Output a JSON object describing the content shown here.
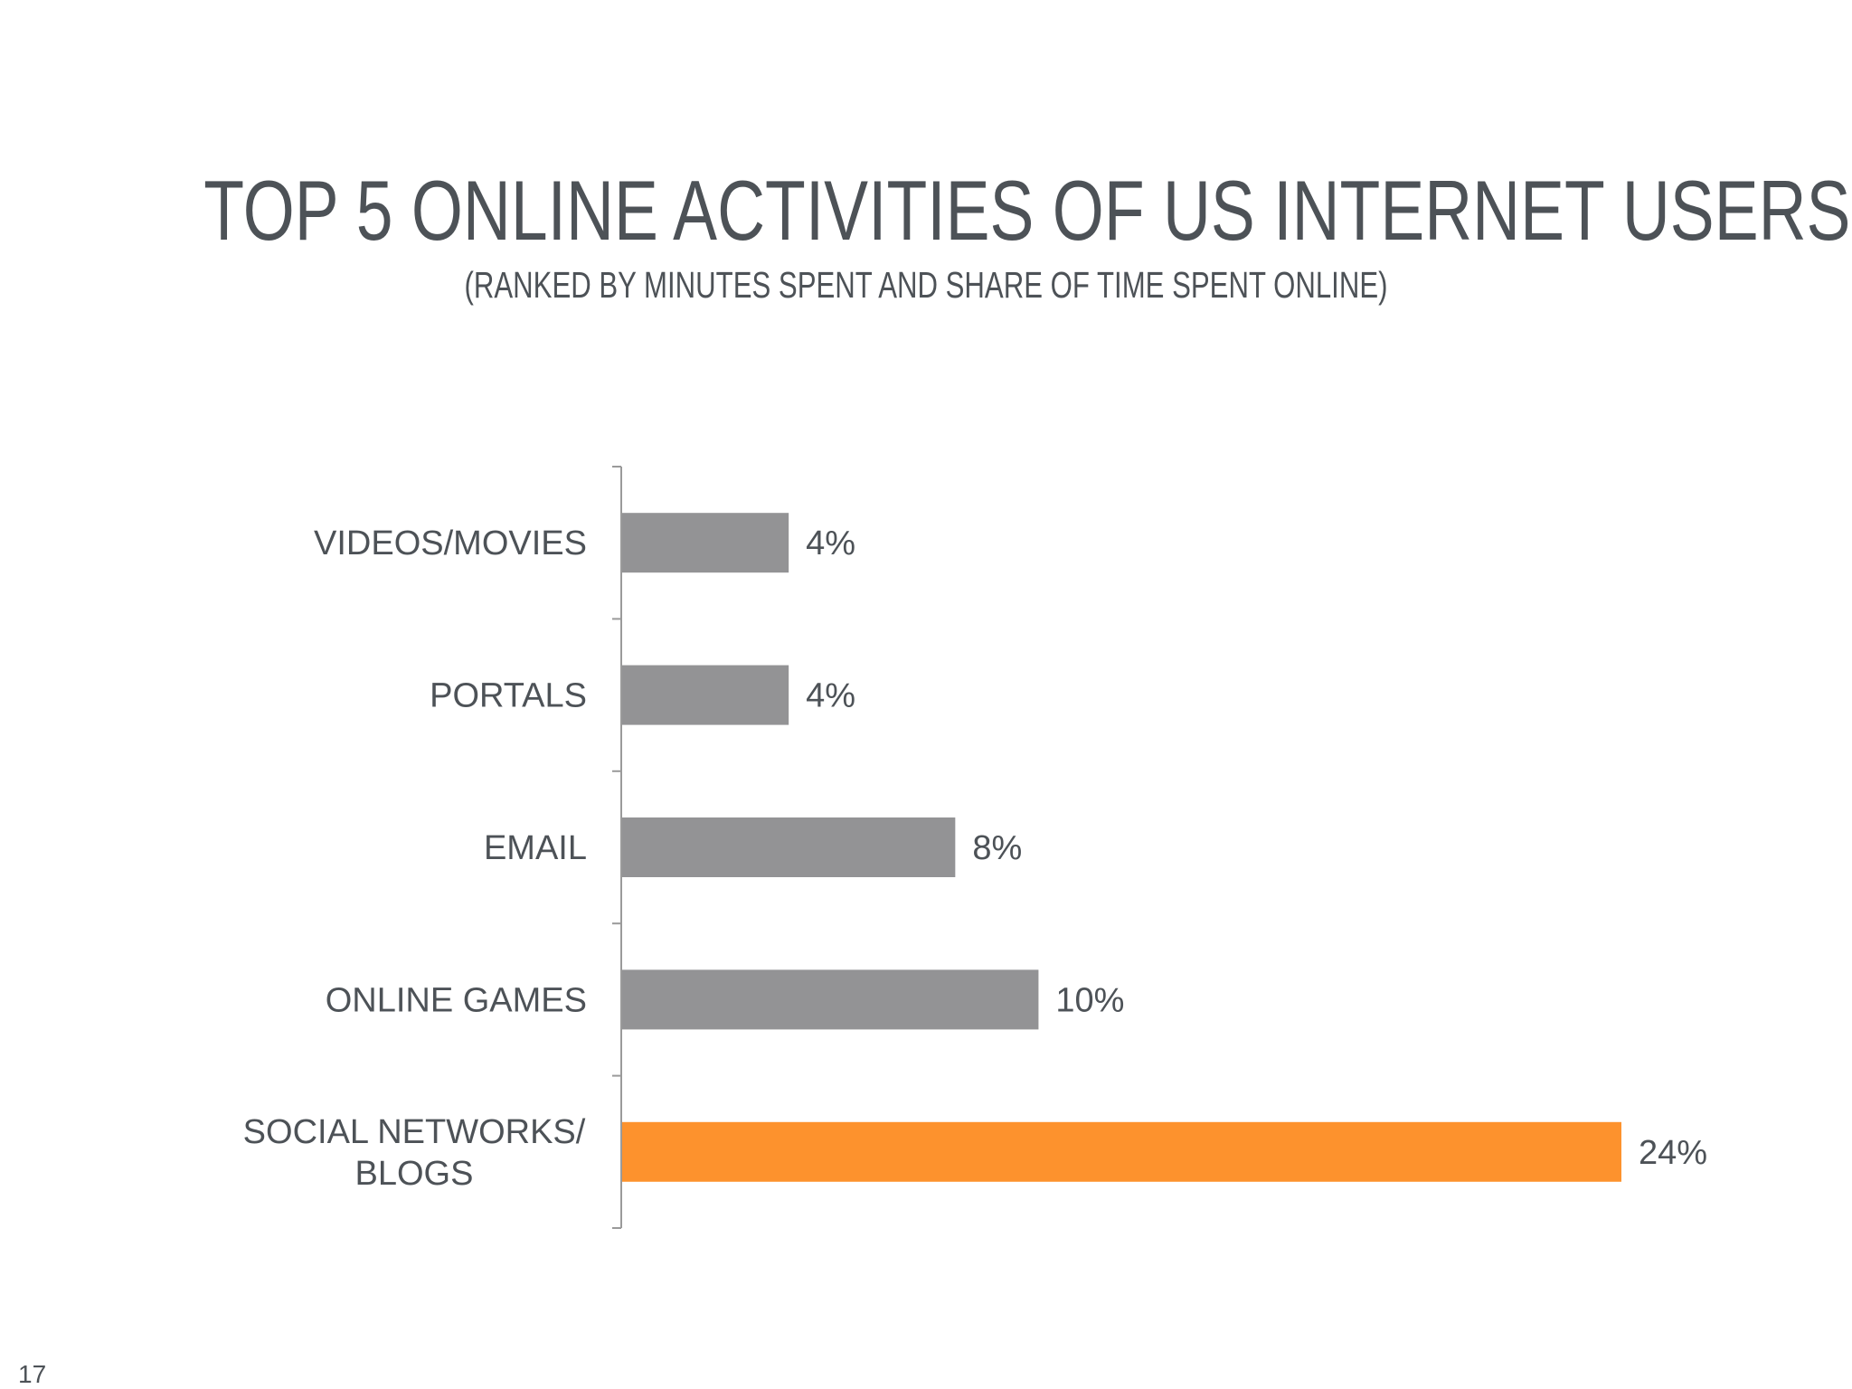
{
  "slide": {
    "page_number": "17"
  },
  "colors": {
    "default_bar": "#939395",
    "highlight_bar": "#fd922d",
    "text": "#4d5257",
    "axis": "#9a9a9a"
  },
  "chart_data": {
    "type": "bar",
    "orientation": "horizontal",
    "title": "TOP 5 ONLINE ACTIVITIES OF US INTERNET USERS",
    "subtitle": "(RANKED BY MINUTES SPENT AND SHARE OF TIME SPENT ONLINE)",
    "categories": [
      [
        "VIDEOS/MOVIES"
      ],
      [
        "PORTALS"
      ],
      [
        "EMAIL"
      ],
      [
        "ONLINE GAMES"
      ],
      [
        "SOCIAL NETWORKS/",
        "BLOGS"
      ]
    ],
    "values": [
      4,
      4,
      8,
      10,
      24
    ],
    "value_labels": [
      "4%",
      "4%",
      "8%",
      "10%",
      "24%"
    ],
    "unit": "%",
    "highlight_index": 4,
    "xlim": [
      0,
      24
    ],
    "grid": false,
    "legend": "none"
  }
}
